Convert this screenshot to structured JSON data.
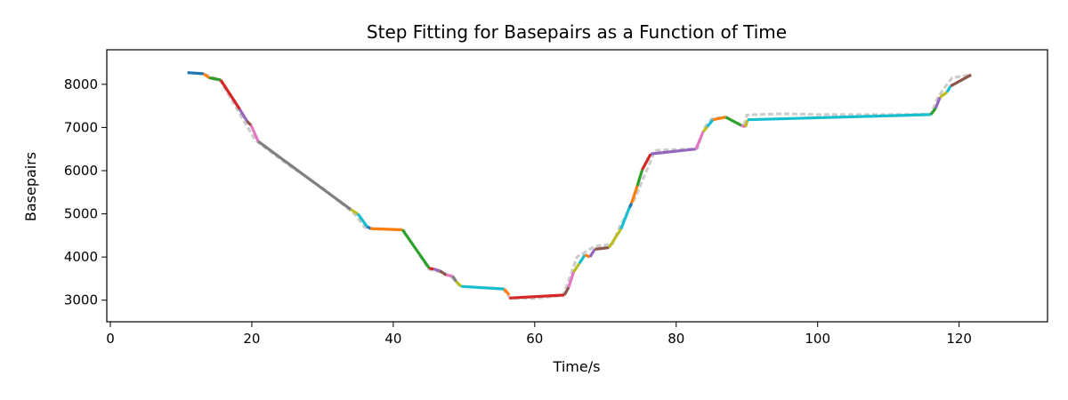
{
  "chart_data": {
    "type": "line",
    "title": "Step Fitting for Basepairs as a Function of Time",
    "xlabel": "Time/s",
    "ylabel": "Basepairs",
    "xlim": [
      -0.5,
      132.5
    ],
    "ylim": [
      2500,
      8800
    ],
    "xticks": [
      0,
      20,
      40,
      60,
      80,
      100,
      120
    ],
    "yticks": [
      3000,
      4000,
      5000,
      6000,
      7000,
      8000
    ],
    "grid": false,
    "legend": "none",
    "raw_color": "#cccccc",
    "raw_data": {
      "x": [
        11,
        13,
        15.5,
        18,
        20.5,
        25,
        30,
        34.5,
        36,
        37,
        41.5,
        45,
        46.5,
        48,
        49.5,
        55.5,
        56.5,
        60,
        64,
        65,
        66,
        67,
        68.5,
        71,
        72,
        74,
        76,
        77,
        83,
        84,
        85,
        87,
        89.5,
        90,
        95,
        100,
        105,
        110,
        116,
        117,
        118,
        119,
        121.5
      ],
      "y": [
        8270,
        8250,
        8100,
        7400,
        6700,
        6150,
        5600,
        5000,
        4680,
        4650,
        4620,
        3720,
        3650,
        3570,
        3320,
        3260,
        3050,
        3040,
        3110,
        3550,
        4010,
        4100,
        4250,
        4300,
        4700,
        5300,
        6070,
        6470,
        6510,
        7000,
        7200,
        7250,
        7010,
        7290,
        7320,
        7300,
        7300,
        7300,
        7310,
        7700,
        7940,
        8150,
        8220
      ]
    },
    "series": [
      {
        "x": [
          10.9,
          13.2
        ],
        "y": [
          8270,
          8245
        ],
        "color": "#1f77b4"
      },
      {
        "x": [
          13.2,
          14.0,
          15.6
        ],
        "y": [
          8245,
          8150,
          8100
        ],
        "color": "#ff7f0e"
      },
      {
        "x": [
          14.0,
          15.6
        ],
        "y": [
          8150,
          8100
        ],
        "color": "#2ca02c"
      },
      {
        "x": [
          15.6,
          18.3
        ],
        "y": [
          8100,
          7420
        ],
        "color": "#d62728"
      },
      {
        "x": [
          18.3,
          19.3
        ],
        "y": [
          7420,
          7150
        ],
        "color": "#9467bd"
      },
      {
        "x": [
          19.3,
          19.9
        ],
        "y": [
          7150,
          7050
        ],
        "color": "#8c564b"
      },
      {
        "x": [
          19.9,
          20.9
        ],
        "y": [
          7050,
          6680
        ],
        "color": "#e377c2"
      },
      {
        "x": [
          20.9,
          34.0
        ],
        "y": [
          6680,
          5100
        ],
        "color": "#7f7f7f"
      },
      {
        "x": [
          34.0,
          35.0
        ],
        "y": [
          5100,
          5000
        ],
        "color": "#bcbd22"
      },
      {
        "x": [
          35.0,
          36.3
        ],
        "y": [
          5000,
          4700
        ],
        "color": "#17becf"
      },
      {
        "x": [
          36.3,
          36.8
        ],
        "y": [
          4700,
          4660
        ],
        "color": "#1f77b4"
      },
      {
        "x": [
          36.8,
          41.3
        ],
        "y": [
          4660,
          4630
        ],
        "color": "#ff7f0e"
      },
      {
        "x": [
          41.3,
          45.1
        ],
        "y": [
          4630,
          3740
        ],
        "color": "#2ca02c"
      },
      {
        "x": [
          45.1,
          45.7
        ],
        "y": [
          3740,
          3720
        ],
        "color": "#d62728"
      },
      {
        "x": [
          45.7,
          46.6
        ],
        "y": [
          3720,
          3680
        ],
        "color": "#9467bd"
      },
      {
        "x": [
          46.6,
          47.5
        ],
        "y": [
          3680,
          3580
        ],
        "color": "#8c564b"
      },
      {
        "x": [
          47.5,
          48.4
        ],
        "y": [
          3580,
          3560
        ],
        "color": "#e377c2"
      },
      {
        "x": [
          48.4,
          48.9
        ],
        "y": [
          3560,
          3430
        ],
        "color": "#7f7f7f"
      },
      {
        "x": [
          48.9,
          49.6
        ],
        "y": [
          3430,
          3320
        ],
        "color": "#bcbd22"
      },
      {
        "x": [
          49.6,
          55.7
        ],
        "y": [
          3320,
          3260
        ],
        "color": "#17becf"
      },
      {
        "x": [
          55.7,
          56.4
        ],
        "y": [
          3260,
          3120
        ],
        "color": "#ff7f0e"
      },
      {
        "x": [
          56.4,
          64.2
        ],
        "y": [
          3050,
          3120
        ],
        "color": "#d62728"
      },
      {
        "x": [
          64.2,
          64.8
        ],
        "y": [
          3120,
          3300
        ],
        "color": "#8c564b"
      },
      {
        "x": [
          64.8,
          65.5
        ],
        "y": [
          3300,
          3650
        ],
        "color": "#e377c2"
      },
      {
        "x": [
          65.5,
          66.3
        ],
        "y": [
          3650,
          3850
        ],
        "color": "#bcbd22"
      },
      {
        "x": [
          66.3,
          67.1
        ],
        "y": [
          3850,
          4050
        ],
        "color": "#17becf"
      },
      {
        "x": [
          67.1,
          67.8
        ],
        "y": [
          4050,
          4000
        ],
        "color": "#ff7f0e"
      },
      {
        "x": [
          67.8,
          68.5
        ],
        "y": [
          4000,
          4180
        ],
        "color": "#9467bd"
      },
      {
        "x": [
          68.5,
          70.5
        ],
        "y": [
          4180,
          4220
        ],
        "color": "#8c564b"
      },
      {
        "x": [
          70.5,
          72.2
        ],
        "y": [
          4220,
          4650
        ],
        "color": "#bcbd22"
      },
      {
        "x": [
          72.2,
          73.4
        ],
        "y": [
          4650,
          5150
        ],
        "color": "#17becf"
      },
      {
        "x": [
          73.4,
          73.7
        ],
        "y": [
          5150,
          5250
        ],
        "color": "#1f77b4"
      },
      {
        "x": [
          73.7,
          74.5
        ],
        "y": [
          5250,
          5650
        ],
        "color": "#ff7f0e"
      },
      {
        "x": [
          74.5,
          75.2
        ],
        "y": [
          5650,
          6020
        ],
        "color": "#2ca02c"
      },
      {
        "x": [
          75.2,
          76.4
        ],
        "y": [
          6020,
          6390
        ],
        "color": "#d62728"
      },
      {
        "x": [
          76.4,
          82.8
        ],
        "y": [
          6390,
          6500
        ],
        "color": "#9467bd"
      },
      {
        "x": [
          82.8,
          83.8
        ],
        "y": [
          6500,
          6900
        ],
        "color": "#e377c2"
      },
      {
        "x": [
          83.8,
          84.4
        ],
        "y": [
          6900,
          7020
        ],
        "color": "#bcbd22"
      },
      {
        "x": [
          84.4,
          85.2
        ],
        "y": [
          7020,
          7180
        ],
        "color": "#17becf"
      },
      {
        "x": [
          85.2,
          87.0
        ],
        "y": [
          7180,
          7240
        ],
        "color": "#ff7f0e"
      },
      {
        "x": [
          87.0,
          89.2
        ],
        "y": [
          7240,
          7050
        ],
        "color": "#2ca02c"
      },
      {
        "x": [
          89.2,
          89.8
        ],
        "y": [
          7050,
          7010
        ],
        "color": "#e377c2"
      },
      {
        "x": [
          89.8,
          90.1
        ],
        "y": [
          7010,
          7180
        ],
        "color": "#bcbd22"
      },
      {
        "x": [
          90.1,
          116.0
        ],
        "y": [
          7180,
          7300
        ],
        "color": "#17becf"
      },
      {
        "x": [
          116.0,
          116.7
        ],
        "y": [
          7300,
          7450
        ],
        "color": "#2ca02c"
      },
      {
        "x": [
          116.7,
          117.3
        ],
        "y": [
          7450,
          7700
        ],
        "color": "#9467bd"
      },
      {
        "x": [
          117.3,
          118.3
        ],
        "y": [
          7700,
          7820
        ],
        "color": "#bcbd22"
      },
      {
        "x": [
          118.3,
          118.8
        ],
        "y": [
          7820,
          7960
        ],
        "color": "#17becf"
      },
      {
        "x": [
          118.8,
          121.7
        ],
        "y": [
          7960,
          8220
        ],
        "color": "#8c564b"
      }
    ]
  }
}
